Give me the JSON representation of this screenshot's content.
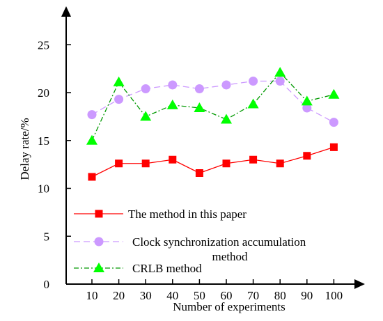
{
  "chart_data": {
    "type": "line",
    "xlabel": "Number of experiments",
    "ylabel": "Delay rate/%",
    "x": [
      10,
      20,
      30,
      40,
      50,
      60,
      70,
      80,
      90,
      100
    ],
    "y_ticks": [
      0,
      5,
      10,
      15,
      20,
      25
    ],
    "ylim": [
      0,
      27.5
    ],
    "grid": false,
    "legend_position": "bottom-left",
    "series": [
      {
        "name": "The method in this paper",
        "marker": "square",
        "line_style": "solid",
        "color": "#ff0000",
        "values": [
          11.2,
          12.6,
          12.6,
          13.0,
          11.6,
          12.6,
          13.0,
          12.6,
          13.4,
          14.3
        ]
      },
      {
        "name": "Clock synchronization accumulation method",
        "name_lines": [
          "Clock synchronization accumulation",
          "method"
        ],
        "marker": "circle",
        "line_style": "dashed",
        "color": "#cc99ff",
        "values": [
          17.7,
          19.3,
          20.4,
          20.8,
          20.4,
          20.8,
          21.2,
          21.2,
          18.4,
          16.9
        ]
      },
      {
        "name": "CRLB method",
        "marker": "triangle",
        "line_style": "dashdot",
        "color": "#00ff00",
        "line_color": "#009900",
        "values": [
          15.0,
          21.1,
          17.5,
          18.7,
          18.4,
          17.2,
          18.8,
          22.1,
          19.1,
          19.8
        ]
      }
    ]
  }
}
